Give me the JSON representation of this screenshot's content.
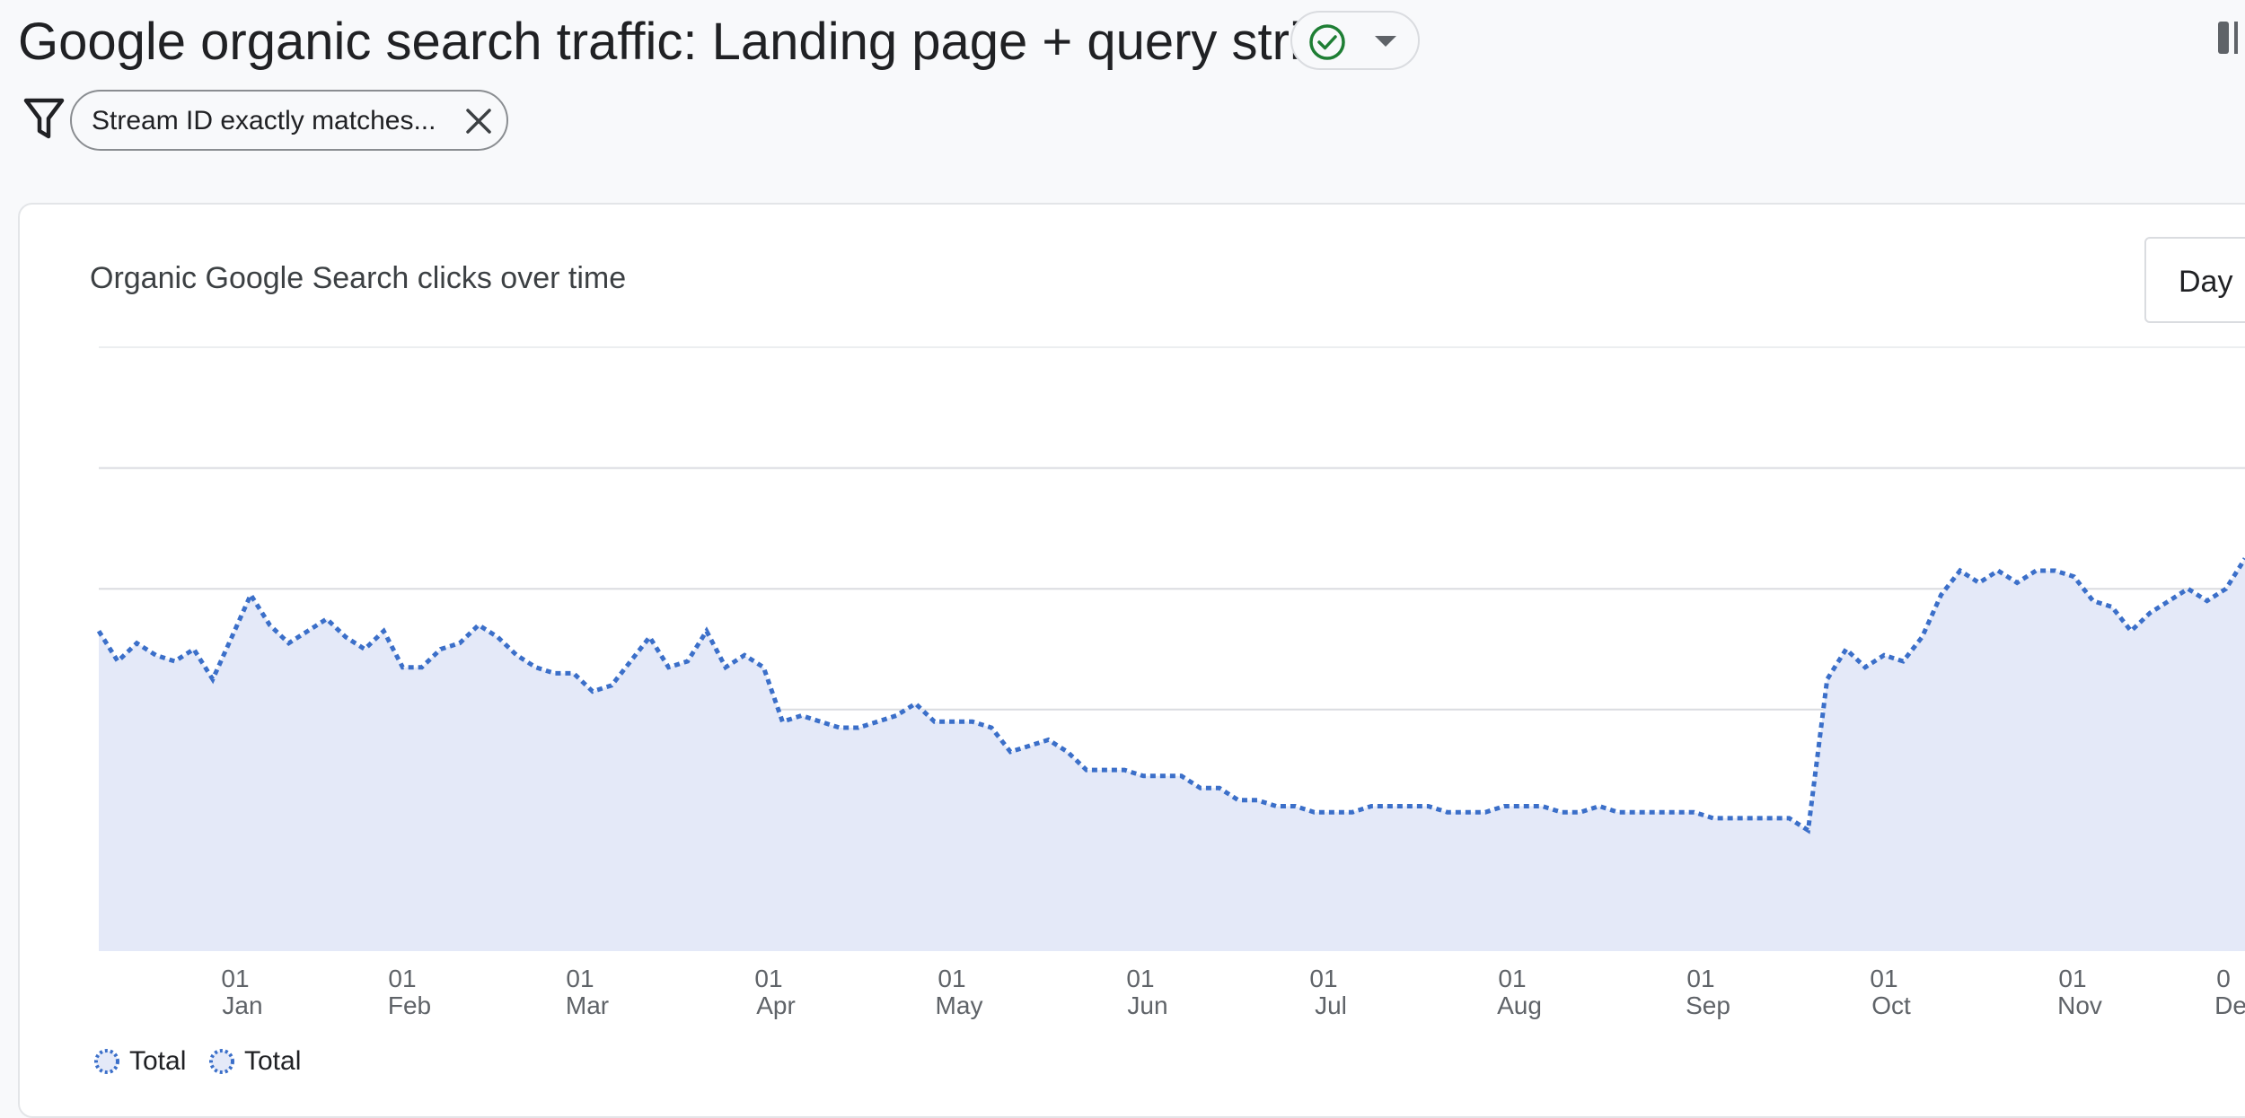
{
  "header": {
    "title": "Google organic search traffic: Landing page + query string",
    "status_icon": "check-circle-icon",
    "dropdown_icon": "caret-down-icon",
    "panel_icon": "side-panel-icon"
  },
  "filters": {
    "icon": "filter-icon",
    "chips": [
      {
        "label": "Stream ID exactly matches...",
        "close_icon": "close-icon"
      }
    ]
  },
  "card": {
    "title": "Organic Google Search clicks over time",
    "granularity": "Day"
  },
  "colors": {
    "line": "#3b6fc9",
    "area": "#e4e9f8",
    "grid": "#dadce0",
    "status_check": "#1e7e34"
  },
  "chart_data": {
    "type": "area",
    "series": [
      {
        "name": "Total",
        "values": [
          5.3,
          4.8,
          5.1,
          4.9,
          4.8,
          5.0,
          4.5,
          5.2,
          5.9,
          5.4,
          5.1,
          5.3,
          5.5,
          5.2,
          5.0,
          5.3,
          4.7,
          4.7,
          5.0,
          5.1,
          5.4,
          5.2,
          4.9,
          4.7,
          4.6,
          4.6,
          4.3,
          4.4,
          4.8,
          5.2,
          4.7,
          4.8,
          5.3,
          4.7,
          4.9,
          4.7,
          3.8,
          3.9,
          3.8,
          3.7,
          3.7,
          3.8,
          3.9,
          4.1,
          3.8,
          3.8,
          3.8,
          3.7,
          3.3,
          3.4,
          3.5,
          3.3,
          3.0,
          3.0,
          3.0,
          2.9,
          2.9,
          2.9,
          2.7,
          2.7,
          2.5,
          2.5,
          2.4,
          2.4,
          2.3,
          2.3,
          2.3,
          2.4,
          2.4,
          2.4,
          2.4,
          2.3,
          2.3,
          2.3,
          2.4,
          2.4,
          2.4,
          2.3,
          2.3,
          2.4,
          2.3,
          2.3,
          2.3,
          2.3,
          2.3,
          2.2,
          2.2,
          2.2,
          2.2,
          2.2,
          2.0,
          4.5,
          5.0,
          4.7,
          4.9,
          4.8,
          5.2,
          5.9,
          6.3,
          6.1,
          6.3,
          6.1,
          6.3,
          6.3,
          6.2,
          5.8,
          5.7,
          5.3,
          5.6,
          5.8,
          6.0,
          5.8,
          6.0,
          6.5
        ]
      },
      {
        "name": "Total",
        "values": []
      }
    ],
    "x_ticks": [
      {
        "day": "01",
        "month": "Jan"
      },
      {
        "day": "01",
        "month": "Feb"
      },
      {
        "day": "01",
        "month": "Mar"
      },
      {
        "day": "01",
        "month": "Apr"
      },
      {
        "day": "01",
        "month": "May"
      },
      {
        "day": "01",
        "month": "Jun"
      },
      {
        "day": "01",
        "month": "Jul"
      },
      {
        "day": "01",
        "month": "Aug"
      },
      {
        "day": "01",
        "month": "Sep"
      },
      {
        "day": "01",
        "month": "Oct"
      },
      {
        "day": "01",
        "month": "Nov"
      },
      {
        "day": "0",
        "month": "De"
      }
    ],
    "ylim": [
      0,
      10
    ],
    "grid": true,
    "legend_position": "bottom-left",
    "title": "",
    "xlabel": "",
    "ylabel": ""
  },
  "legend": [
    {
      "label": "Total"
    },
    {
      "label": "Total"
    }
  ]
}
